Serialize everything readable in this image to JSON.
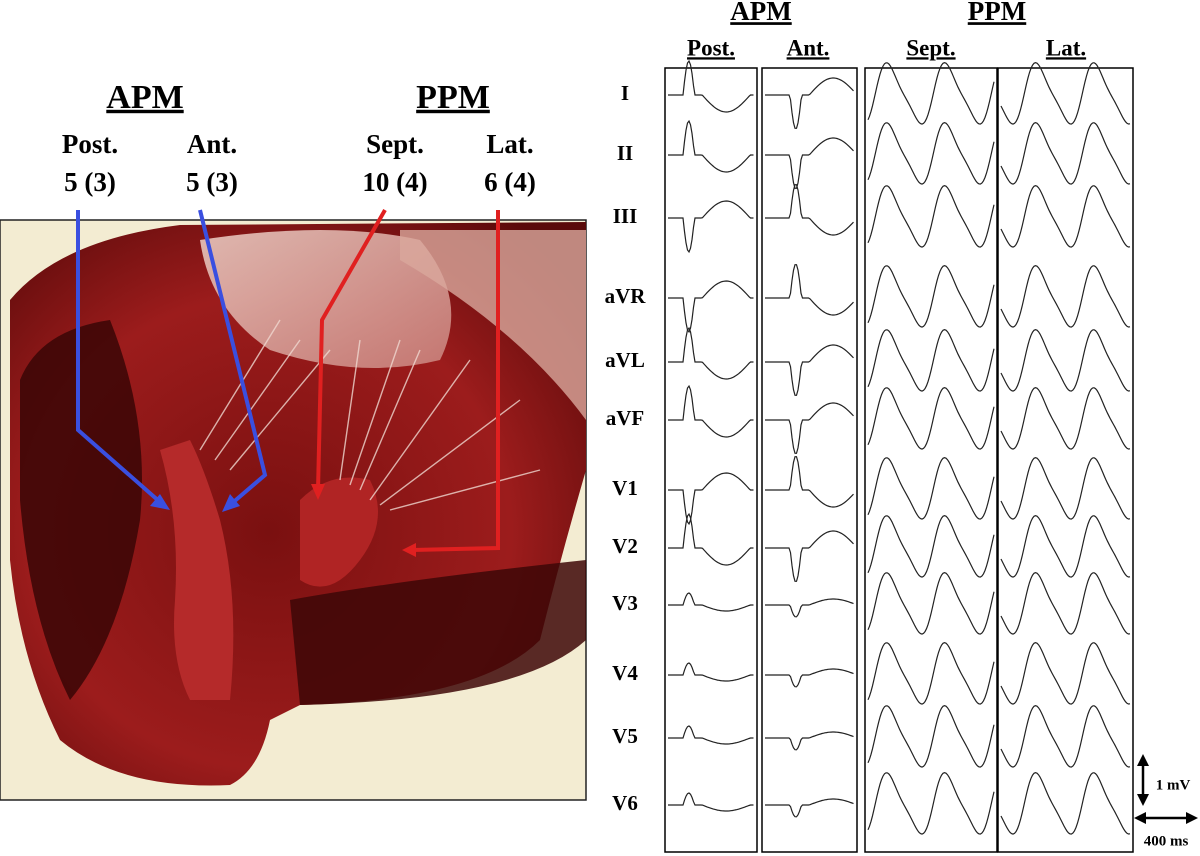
{
  "photo_labels": {
    "groups": [
      {
        "title": "APM",
        "sites": [
          {
            "name": "Post.",
            "count": "5 (3)"
          },
          {
            "name": "Ant.",
            "count": "5 (3)"
          }
        ]
      },
      {
        "title": "PPM",
        "sites": [
          {
            "name": "Sept.",
            "count": "10 (4)"
          },
          {
            "name": "Lat.",
            "count": "6 (4)"
          }
        ]
      }
    ]
  },
  "ecg": {
    "groups": [
      {
        "title": "APM",
        "panels": [
          "Post.",
          "Ant."
        ]
      },
      {
        "title": "PPM",
        "panels": [
          "Sept.",
          "Lat."
        ]
      }
    ],
    "leads": [
      "I",
      "II",
      "III",
      "aVR",
      "aVL",
      "aVF",
      "V1",
      "V2",
      "V3",
      "V4",
      "V5",
      "V6"
    ],
    "scale": {
      "voltage": "1 mV",
      "time": "400 ms"
    }
  }
}
